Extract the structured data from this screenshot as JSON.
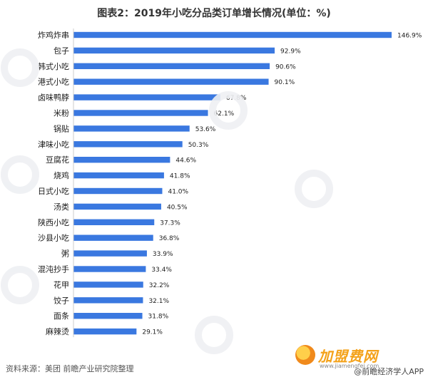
{
  "title": "图表2：2019年小吃分品类订单增长情况(单位：%)",
  "source": "资料来源：美团 前瞻产业研究院整理",
  "footer": {
    "brand": "加盟费网",
    "brand_url": "www.jiamengfei.com",
    "app_text": "@前瞻经济学人APP"
  },
  "colors": {
    "bar": "#3a78e0",
    "text": "#1a1a1a"
  },
  "chart_data": {
    "type": "bar",
    "orientation": "horizontal",
    "title": "图表2：2019年小吃分品类订单增长情况(单位：%)",
    "unit": "%",
    "categories": [
      "炸鸡炸串",
      "包子",
      "韩式小吃",
      "港式小吃",
      "卤味鸭脖",
      "米粉",
      "锅贴",
      "津味小吃",
      "豆腐花",
      "烧鸡",
      "日式小吃",
      "汤类",
      "陕西小吃",
      "沙县小吃",
      "粥",
      "混沌抄手",
      "花甲",
      "饺子",
      "面条",
      "麻辣烫"
    ],
    "values": [
      146.9,
      92.9,
      90.6,
      90.1,
      67.8,
      62.1,
      53.6,
      50.3,
      44.6,
      41.8,
      41.0,
      40.5,
      37.3,
      36.8,
      33.9,
      33.4,
      32.2,
      32.1,
      31.8,
      29.1
    ],
    "value_labels": [
      "146.9%",
      "92.9%",
      "90.6%",
      "90.1%",
      "67.8%",
      "62.1%",
      "53.6%",
      "50.3%",
      "44.6%",
      "41.8%",
      "41.0%",
      "40.5%",
      "37.3%",
      "36.8%",
      "33.9%",
      "33.4%",
      "32.2%",
      "32.1%",
      "31.8%",
      "29.1%"
    ],
    "xlim": [
      0,
      146.9
    ],
    "grid": false,
    "legend": "none"
  }
}
